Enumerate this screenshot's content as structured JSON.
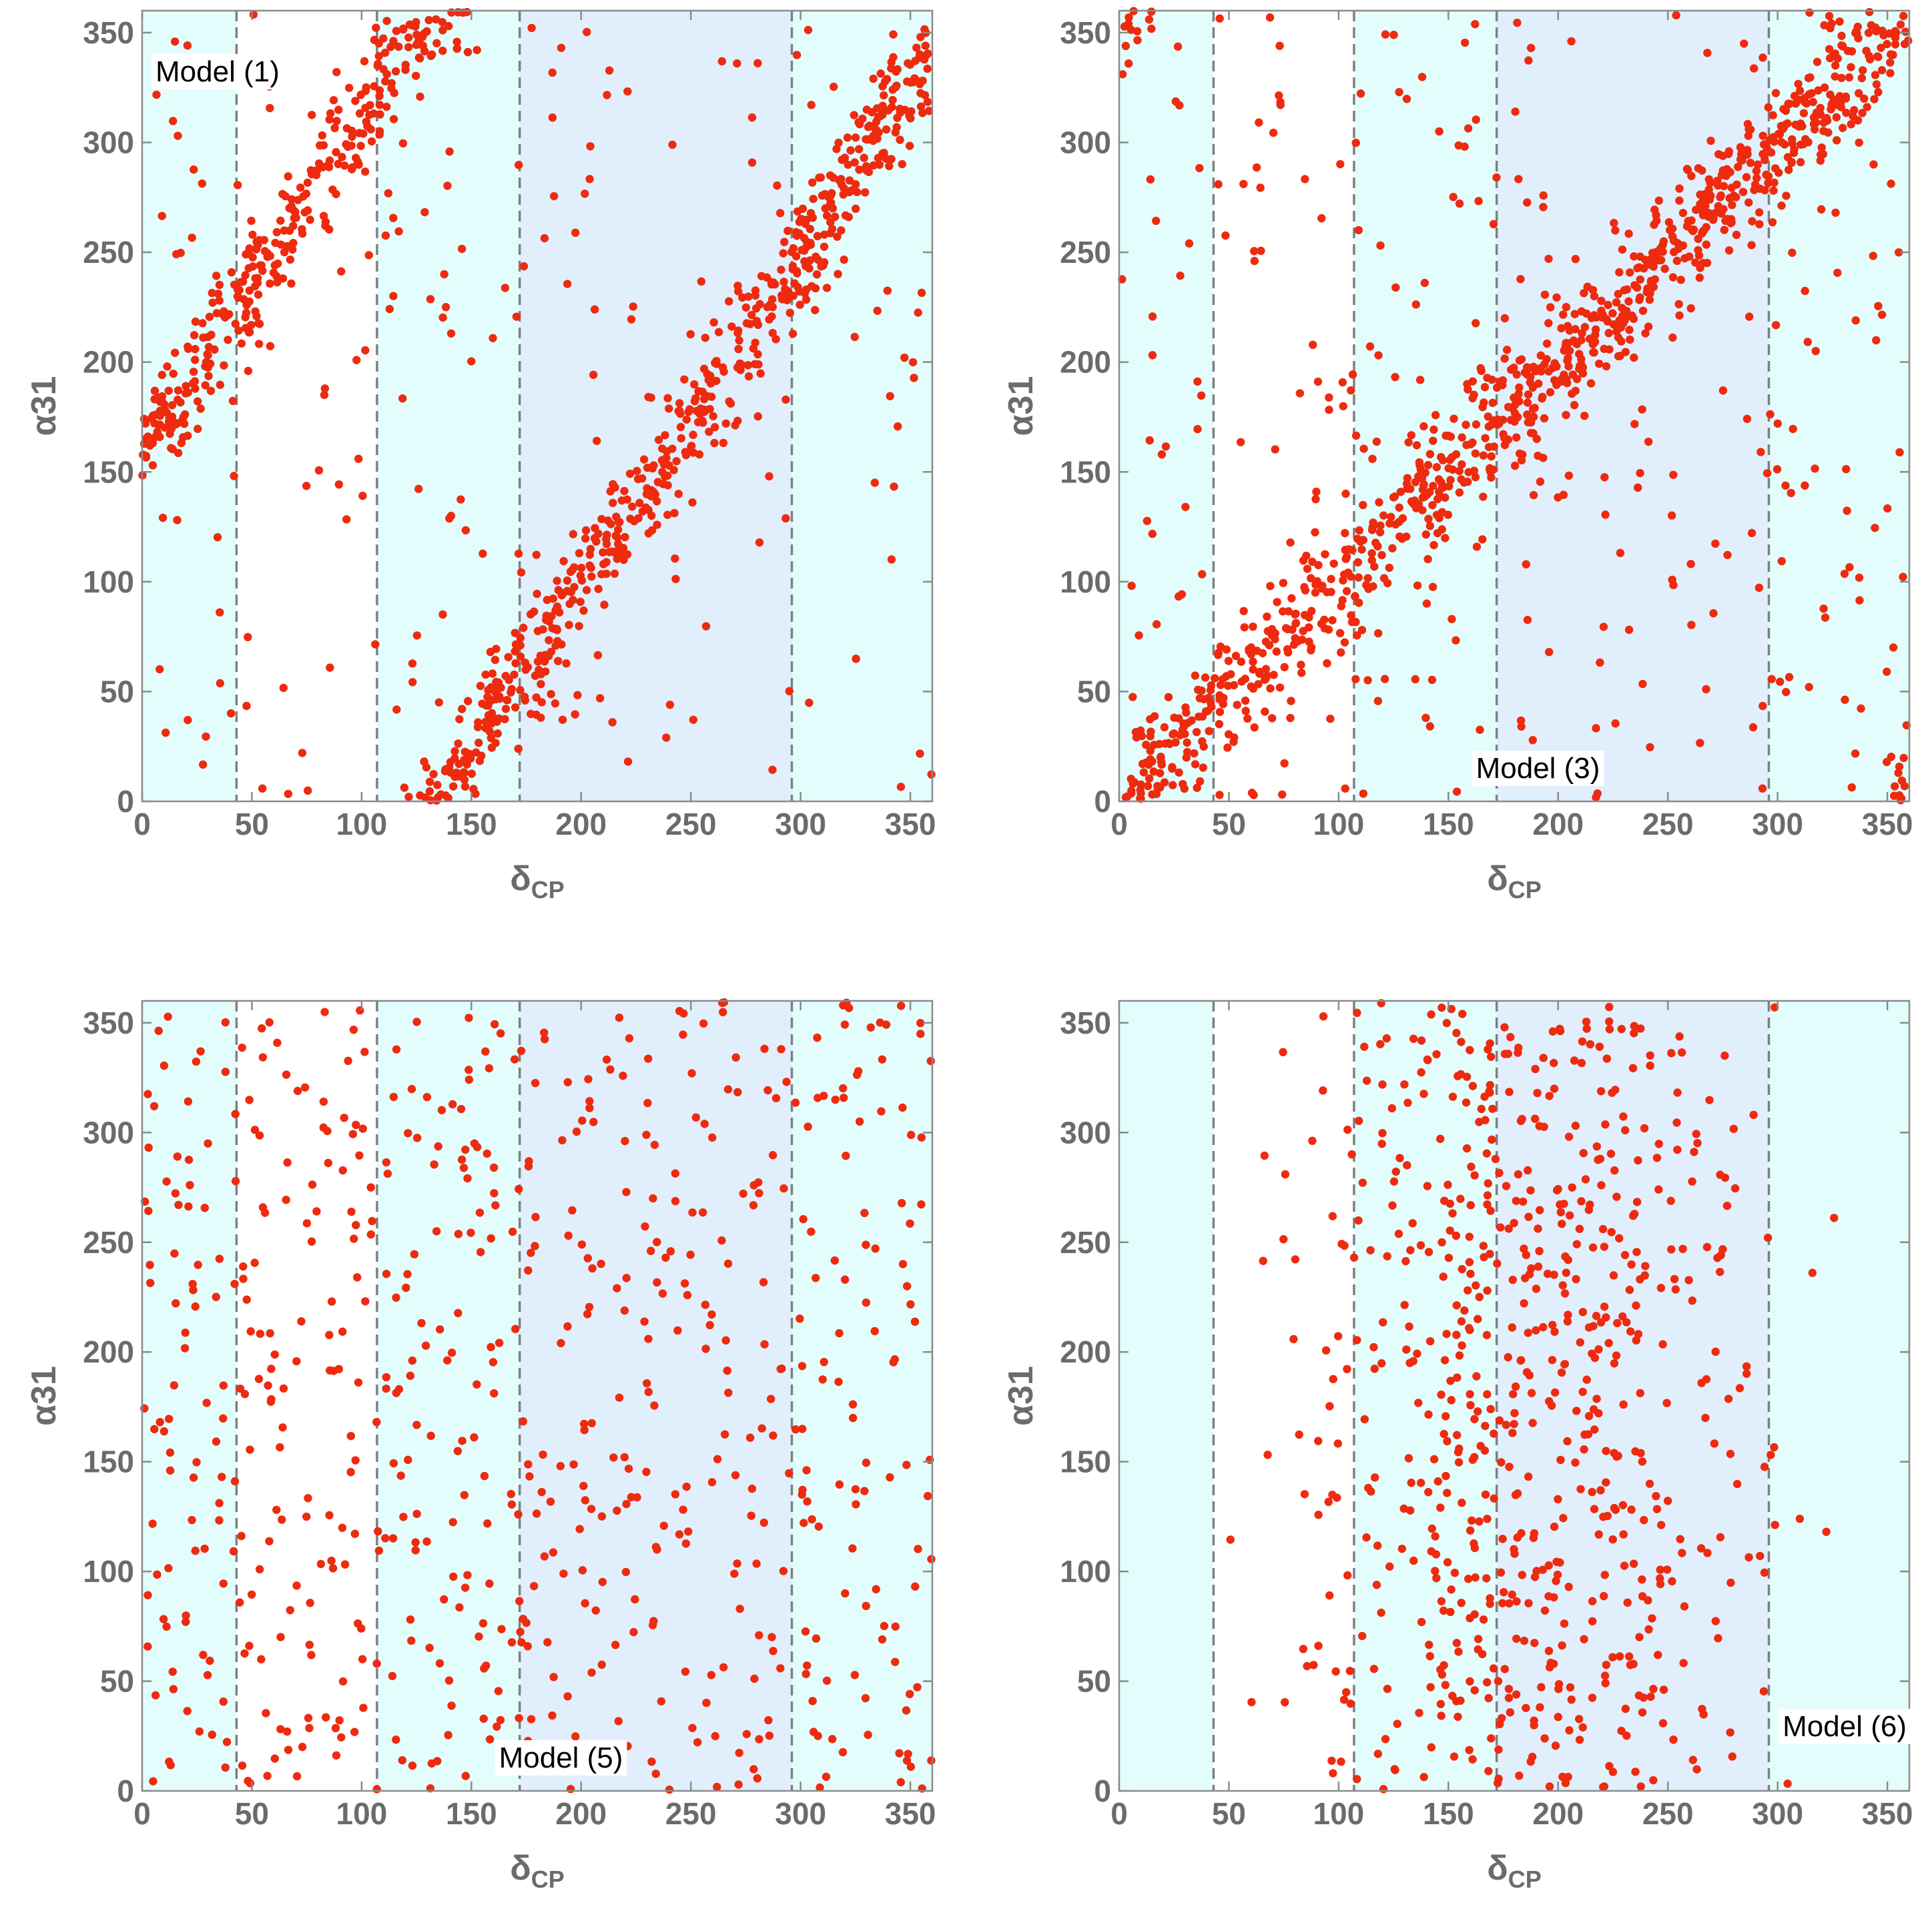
{
  "colors": {
    "band_light": "#e3fdfd",
    "band_blue": "#e1effc",
    "point": "#ee2a0f",
    "frame": "#8a8a8a",
    "dashed": "#7f7f7f",
    "tick_text": "#6b6b6b"
  },
  "chart_data": [
    {
      "type": "scatter",
      "label": "Model (1)",
      "label_position": "top-left",
      "xlabel": "δ",
      "xlabel_sub": "CP",
      "ylabel": "α31",
      "xlim": [
        0,
        360
      ],
      "ylim": [
        0,
        360
      ],
      "xticks": [
        "0",
        "50",
        "100",
        "150",
        "200",
        "250",
        "300",
        "350"
      ],
      "yticks": [
        "0",
        "50",
        "100",
        "150",
        "200",
        "250",
        "300",
        "350"
      ],
      "dashed_lines_x": [
        43,
        107,
        172,
        296
      ],
      "bands": [
        {
          "x": [
            0,
            43
          ],
          "color": "light"
        },
        {
          "x": [
            107,
            172
          ],
          "color": "light"
        },
        {
          "x": [
            172,
            296
          ],
          "color": "blue"
        },
        {
          "x": [
            296,
            360
          ],
          "color": "light"
        }
      ],
      "pattern": {
        "kind": "wrap_band",
        "slope": 1.5,
        "offset": 160,
        "n": 900,
        "scatter_n": 200
      },
      "series": [
        {
          "color": "red"
        }
      ]
    },
    {
      "type": "scatter",
      "label": "Model (3)",
      "label_position": "bottom-center",
      "xlabel": "δ",
      "xlabel_sub": "CP",
      "ylabel": "α31",
      "xlim": [
        0,
        360
      ],
      "ylim": [
        0,
        360
      ],
      "xticks": [
        "0",
        "50",
        "100",
        "150",
        "200",
        "250",
        "300",
        "350"
      ],
      "yticks": [
        "0",
        "50",
        "100",
        "150",
        "200",
        "250",
        "300",
        "350"
      ],
      "dashed_lines_x": [
        43,
        107,
        172,
        296
      ],
      "bands": [
        {
          "x": [
            0,
            43
          ],
          "color": "light"
        },
        {
          "x": [
            107,
            172
          ],
          "color": "light"
        },
        {
          "x": [
            172,
            296
          ],
          "color": "blue"
        },
        {
          "x": [
            296,
            360
          ],
          "color": "light"
        }
      ],
      "pattern": {
        "kind": "wrap_band",
        "slope": 1.0,
        "offset": 0,
        "n": 900,
        "scatter_n": 300
      },
      "series": [
        {
          "color": "red"
        }
      ]
    },
    {
      "type": "scatter",
      "label": "Model (5)",
      "label_position": "bottom-center",
      "xlabel": "δ",
      "xlabel_sub": "CP",
      "ylabel": "α31",
      "xlim": [
        0,
        360
      ],
      "ylim": [
        0,
        360
      ],
      "xticks": [
        "0",
        "50",
        "100",
        "150",
        "200",
        "250",
        "300",
        "350"
      ],
      "yticks": [
        "0",
        "50",
        "100",
        "150",
        "200",
        "250",
        "300",
        "350"
      ],
      "dashed_lines_x": [
        43,
        107,
        172,
        296
      ],
      "bands": [
        {
          "x": [
            0,
            43
          ],
          "color": "light"
        },
        {
          "x": [
            107,
            172
          ],
          "color": "light"
        },
        {
          "x": [
            172,
            296
          ],
          "color": "blue"
        },
        {
          "x": [
            296,
            360
          ],
          "color": "light"
        }
      ],
      "pattern": {
        "kind": "uniform",
        "n": 650
      },
      "series": [
        {
          "color": "red"
        }
      ]
    },
    {
      "type": "scatter",
      "label": "Model (6)",
      "label_position": "bottom-right",
      "xlabel": "δ",
      "xlabel_sub": "CP",
      "ylabel": "α31",
      "xlim": [
        0,
        360
      ],
      "ylim": [
        0,
        360
      ],
      "xticks": [
        "0",
        "50",
        "100",
        "150",
        "200",
        "250",
        "300",
        "350"
      ],
      "yticks": [
        "0",
        "50",
        "100",
        "150",
        "200",
        "250",
        "300",
        "350"
      ],
      "dashed_lines_x": [
        43,
        107,
        172,
        296
      ],
      "bands": [
        {
          "x": [
            0,
            43
          ],
          "color": "light"
        },
        {
          "x": [
            107,
            172
          ],
          "color": "light"
        },
        {
          "x": [
            172,
            296
          ],
          "color": "blue"
        },
        {
          "x": [
            296,
            360
          ],
          "color": "light"
        }
      ],
      "pattern": {
        "kind": "centered",
        "x_range": [
          40,
          340
        ],
        "n": 700
      },
      "series": [
        {
          "color": "red"
        }
      ]
    }
  ]
}
